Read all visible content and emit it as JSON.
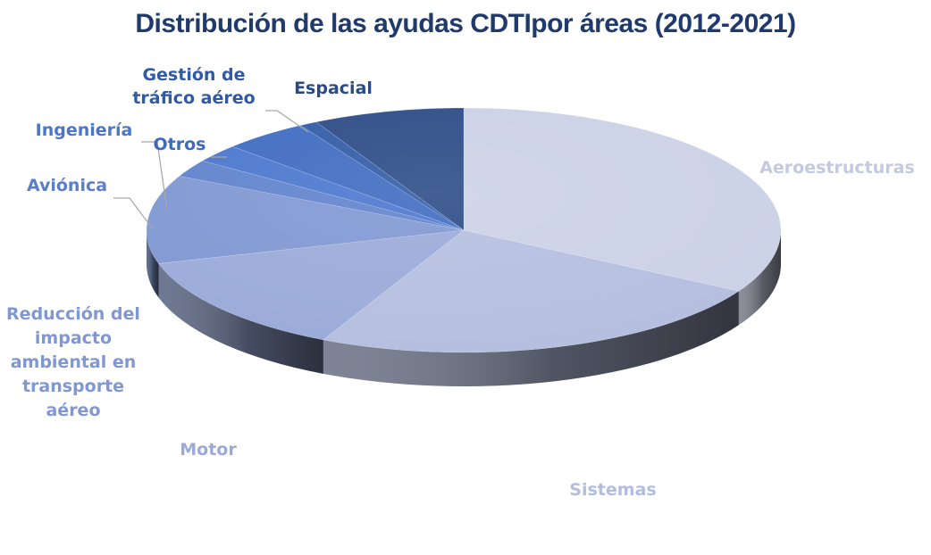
{
  "chart_data": {
    "type": "pie",
    "title": "Distribución de las ayudas CDTIpor áreas (2012-2021)",
    "three_d": true,
    "legend": "none",
    "slices": [
      {
        "label": "Aeroestructuras",
        "value": 33.3,
        "color": "#cbd1e6"
      },
      {
        "label": "Sistemas",
        "value": 24.0,
        "color": "#b5bedf"
      },
      {
        "label": "Motor",
        "value": 13.3,
        "color": "#9aaad8"
      },
      {
        "label": "Reducción del impacto ambiental en transporte aéreo",
        "value": 11.7,
        "color": "#7f97d2"
      },
      {
        "label": "Aviónica",
        "value": 2.3,
        "color": "#5f82cc"
      },
      {
        "label": "Ingeniería",
        "value": 2.4,
        "color": "#4a76ce"
      },
      {
        "label": "Otros",
        "value": 4.4,
        "color": "#3d6ac0"
      },
      {
        "label": "Gestión de tráfico aéreo",
        "value": 0.9,
        "color": "#2f5aa6"
      },
      {
        "label": "Espacial",
        "value": 7.7,
        "color": "#2a4a85"
      }
    ]
  }
}
